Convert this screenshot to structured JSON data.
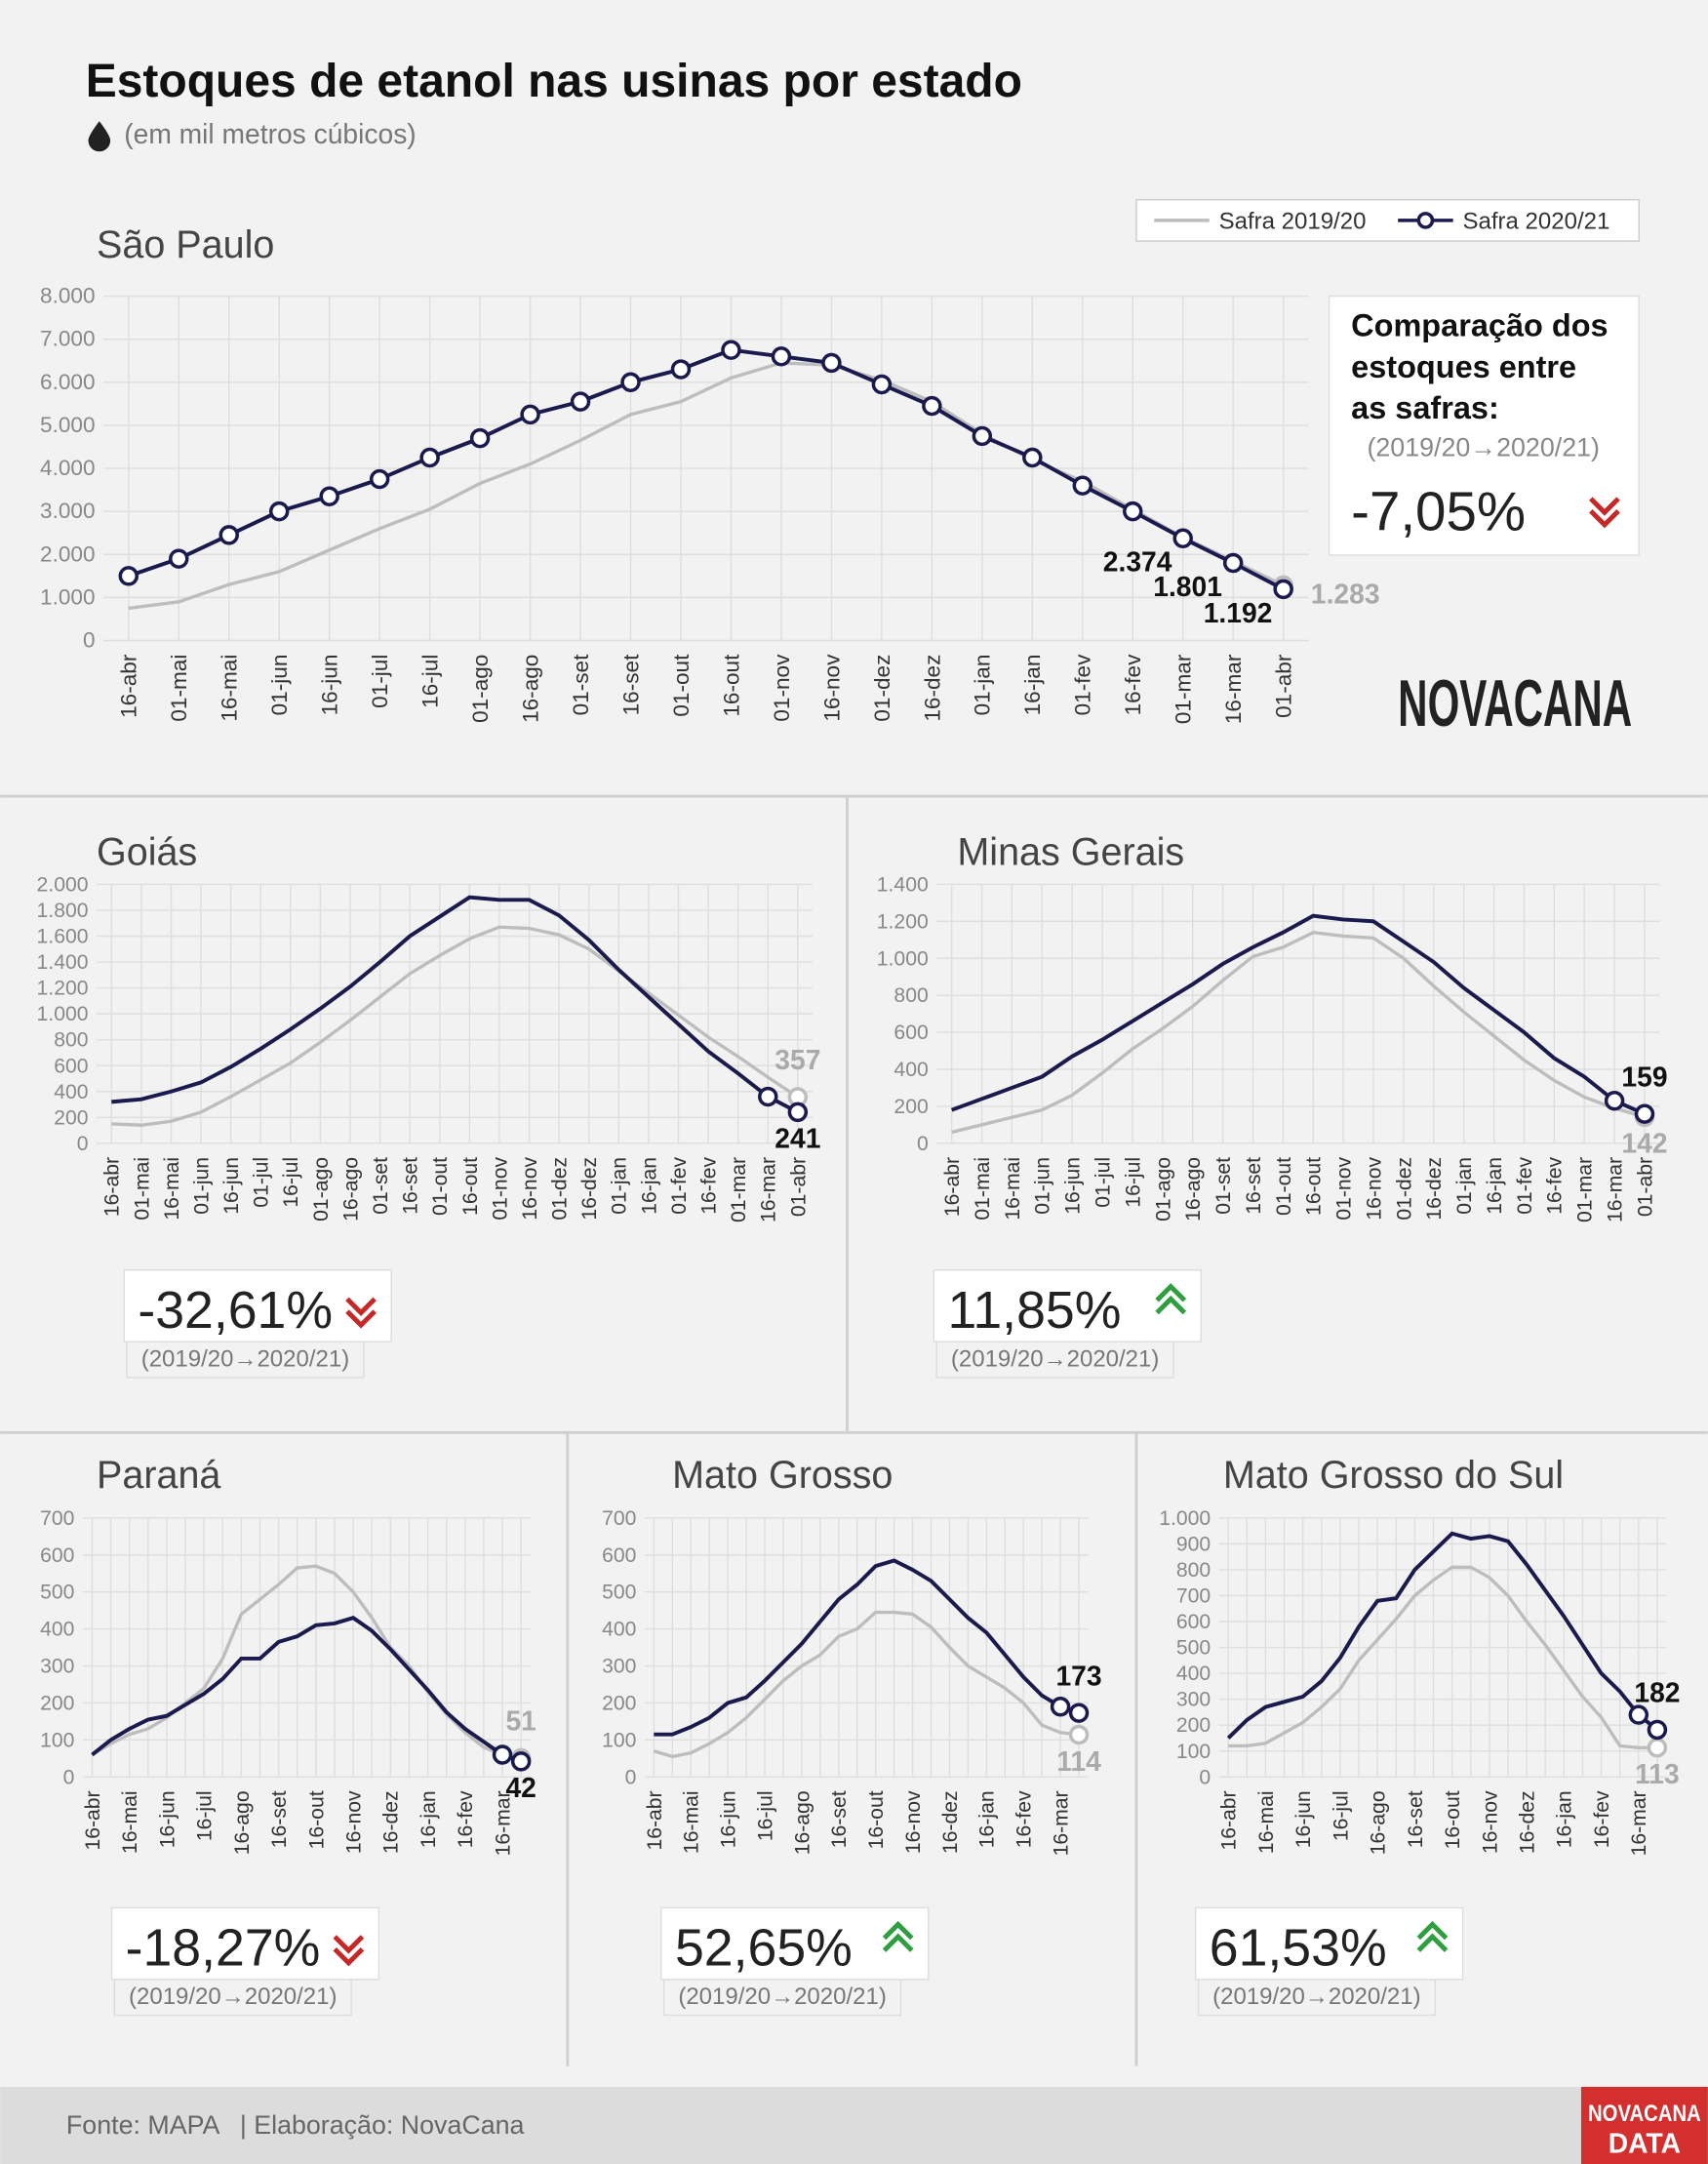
{
  "title": "Estoques de etanol nas usinas por estado",
  "subtitle": "(em mil metros cúbicos)",
  "logo": "NOVACANA",
  "badge": [
    "NOVACANA",
    "DATA"
  ],
  "footer": {
    "source": "Fonte: MAPA",
    "credit": "| Elaboração: NovaCana"
  },
  "chart_data": [
    {
      "type": "line",
      "title": "São Paulo",
      "grid": true,
      "categories": [
        "16-abr",
        "01-mai",
        "16-mai",
        "01-jun",
        "16-jun",
        "01-jul",
        "16-jul",
        "01-ago",
        "16-ago",
        "01-set",
        "16-set",
        "01-out",
        "16-out",
        "01-nov",
        "16-nov",
        "01-dez",
        "16-dez",
        "01-jan",
        "16-jan",
        "01-fev",
        "16-fev",
        "01-mar",
        "16-mar",
        "01-abr"
      ],
      "ylim": [
        0,
        8000
      ],
      "yticks": [
        0,
        {
          "value": 1000,
          "label": "1.000"
        },
        {
          "value": 2000,
          "label": "2.000"
        },
        {
          "value": 3000,
          "label": "3.000"
        },
        {
          "value": 4000,
          "label": "4.000"
        },
        {
          "value": 5000,
          "label": "5.000"
        },
        {
          "value": 6000,
          "label": "6.000"
        },
        {
          "value": 7000,
          "label": "7.000"
        },
        {
          "value": 8000,
          "label": "8.000"
        }
      ],
      "legend": "top-right",
      "series": [
        {
          "name": "Safra 2019/20",
          "color": "#bdbdbd",
          "markers": "last",
          "label_position": "right",
          "values": [
            750,
            900,
            1300,
            1600,
            2100,
            2600,
            3050,
            3650,
            4100,
            4650,
            5250,
            5550,
            6100,
            6450,
            6400,
            6050,
            5550,
            4800,
            4200,
            3700,
            3050,
            2400,
            1850,
            1283
          ],
          "value_labels": [
            null,
            null,
            null,
            null,
            null,
            null,
            null,
            null,
            null,
            null,
            null,
            null,
            null,
            null,
            null,
            null,
            null,
            null,
            null,
            null,
            null,
            null,
            null,
            "1.283"
          ]
        },
        {
          "name": "Safra 2020/21",
          "color": "#1a1a4e",
          "markers": "all",
          "label_position": "left",
          "values": [
            1500,
            1900,
            2450,
            3000,
            3350,
            3750,
            4250,
            4700,
            5250,
            5550,
            6000,
            6300,
            6750,
            6600,
            6450,
            5950,
            5450,
            4750,
            4250,
            3600,
            3000,
            2374,
            1801,
            1192
          ],
          "value_labels": [
            null,
            null,
            null,
            null,
            null,
            null,
            null,
            null,
            null,
            null,
            null,
            null,
            null,
            null,
            null,
            null,
            null,
            null,
            null,
            null,
            null,
            "2.374",
            "1.801",
            "1.192"
          ]
        }
      ],
      "comparison": {
        "title": [
          "Comparação dos",
          "estoques entre",
          "as safras:"
        ],
        "period": "(2019/20→2020/21)",
        "change": "-7,05%",
        "trend": "down"
      }
    },
    {
      "type": "line",
      "title": "Goiás",
      "grid": true,
      "categories": [
        "16-abr",
        "01-mai",
        "16-mai",
        "01-jun",
        "16-jun",
        "01-jul",
        "16-jul",
        "01-ago",
        "16-ago",
        "01-set",
        "16-set",
        "01-out",
        "16-out",
        "01-nov",
        "16-nov",
        "01-dez",
        "16-dez",
        "01-jan",
        "16-jan",
        "01-fev",
        "16-fev",
        "01-mar",
        "16-mar",
        "01-abr"
      ],
      "ylim": [
        0,
        2000
      ],
      "yticks": [
        0,
        200,
        400,
        600,
        800,
        {
          "value": 1000,
          "label": "1.000"
        },
        {
          "value": 1200,
          "label": "1.200"
        },
        {
          "value": 1400,
          "label": "1.400"
        },
        {
          "value": 1600,
          "label": "1.600"
        },
        {
          "value": 1800,
          "label": "1.800"
        },
        {
          "value": 2000,
          "label": "2.000"
        }
      ],
      "series": [
        {
          "color": "#bdbdbd",
          "markers": "last",
          "label_position": "above",
          "values": [
            150,
            140,
            170,
            240,
            360,
            490,
            620,
            780,
            950,
            1130,
            1310,
            1450,
            1580,
            1670,
            1660,
            1610,
            1500,
            1330,
            1160,
            990,
            820,
            670,
            510,
            357
          ],
          "value_labels": [
            null,
            null,
            null,
            null,
            null,
            null,
            null,
            null,
            null,
            null,
            null,
            null,
            null,
            null,
            null,
            null,
            null,
            null,
            null,
            null,
            null,
            null,
            null,
            "357"
          ]
        },
        {
          "color": "#1a1a4e",
          "markers": "last2",
          "label_position": "below",
          "values": [
            320,
            340,
            400,
            470,
            590,
            730,
            880,
            1040,
            1210,
            1400,
            1600,
            1750,
            1900,
            1880,
            1880,
            1760,
            1570,
            1340,
            1130,
            920,
            710,
            540,
            360,
            241
          ],
          "value_labels": [
            null,
            null,
            null,
            null,
            null,
            null,
            null,
            null,
            null,
            null,
            null,
            null,
            null,
            null,
            null,
            null,
            null,
            null,
            null,
            null,
            null,
            null,
            null,
            "241"
          ]
        }
      ],
      "comparison": {
        "period": "(2019/20→2020/21)",
        "change": "-32,61%",
        "trend": "down"
      }
    },
    {
      "type": "line",
      "title": "Minas Gerais",
      "grid": true,
      "categories": [
        "16-abr",
        "01-mai",
        "16-mai",
        "01-jun",
        "16-jun",
        "01-jul",
        "16-jul",
        "01-ago",
        "16-ago",
        "01-set",
        "16-set",
        "01-out",
        "16-out",
        "01-nov",
        "16-nov",
        "01-dez",
        "16-dez",
        "01-jan",
        "16-jan",
        "01-fev",
        "16-fev",
        "01-mar",
        "16-mar",
        "01-abr"
      ],
      "ylim": [
        0,
        1400
      ],
      "yticks": [
        0,
        200,
        400,
        600,
        800,
        {
          "value": 1000,
          "label": "1.000"
        },
        {
          "value": 1200,
          "label": "1.200"
        },
        {
          "value": 1400,
          "label": "1.400"
        }
      ],
      "series": [
        {
          "color": "#bdbdbd",
          "markers": "last",
          "label_position": "below",
          "values": [
            60,
            100,
            140,
            180,
            260,
            380,
            510,
            620,
            740,
            880,
            1010,
            1060,
            1140,
            1120,
            1110,
            1000,
            850,
            710,
            580,
            450,
            340,
            250,
            190,
            142
          ],
          "value_labels": [
            null,
            null,
            null,
            null,
            null,
            null,
            null,
            null,
            null,
            null,
            null,
            null,
            null,
            null,
            null,
            null,
            null,
            null,
            null,
            null,
            null,
            null,
            null,
            "142"
          ]
        },
        {
          "color": "#1a1a4e",
          "markers": "last2",
          "label_position": "above",
          "values": [
            180,
            240,
            300,
            360,
            470,
            560,
            660,
            760,
            860,
            970,
            1060,
            1140,
            1230,
            1210,
            1200,
            1090,
            980,
            840,
            720,
            600,
            460,
            360,
            230,
            159
          ],
          "value_labels": [
            null,
            null,
            null,
            null,
            null,
            null,
            null,
            null,
            null,
            null,
            null,
            null,
            null,
            null,
            null,
            null,
            null,
            null,
            null,
            null,
            null,
            null,
            null,
            "159"
          ]
        }
      ],
      "comparison": {
        "period": "(2019/20→2020/21)",
        "change": "11,85%",
        "trend": "up"
      }
    },
    {
      "type": "line",
      "title": "Paraná",
      "grid": true,
      "categories": [
        "16-abr",
        null,
        "16-mai",
        null,
        "16-jun",
        null,
        "16-jul",
        null,
        "16-ago",
        null,
        "16-set",
        null,
        "16-out",
        null,
        "16-nov",
        null,
        "16-dez",
        null,
        "16-jan",
        null,
        "16-fev",
        null,
        "16-mar",
        null
      ],
      "ylim": [
        0,
        700
      ],
      "yticks": [
        0,
        100,
        200,
        300,
        400,
        500,
        600,
        700
      ],
      "series": [
        {
          "color": "#bdbdbd",
          "markers": "last",
          "label_position": "above",
          "values": [
            60,
            90,
            115,
            130,
            160,
            200,
            240,
            320,
            440,
            480,
            520,
            565,
            570,
            550,
            500,
            430,
            350,
            300,
            230,
            170,
            120,
            80,
            60,
            51
          ],
          "value_labels": [
            null,
            null,
            null,
            null,
            null,
            null,
            null,
            null,
            null,
            null,
            null,
            null,
            null,
            null,
            null,
            null,
            null,
            null,
            null,
            null,
            null,
            null,
            null,
            "51"
          ]
        },
        {
          "color": "#1a1a4e",
          "markers": "last2",
          "label_position": "below",
          "values": [
            60,
            100,
            130,
            155,
            165,
            195,
            225,
            265,
            320,
            320,
            365,
            380,
            410,
            415,
            430,
            395,
            345,
            290,
            235,
            175,
            130,
            95,
            60,
            42
          ],
          "value_labels": [
            null,
            null,
            null,
            null,
            null,
            null,
            null,
            null,
            null,
            null,
            null,
            null,
            null,
            null,
            null,
            null,
            null,
            null,
            null,
            null,
            null,
            null,
            null,
            "42"
          ]
        }
      ],
      "comparison": {
        "period": "(2019/20→2020/21)",
        "change": "-18,27%",
        "trend": "down"
      }
    },
    {
      "type": "line",
      "title": "Mato Grosso",
      "grid": true,
      "categories": [
        "16-abr",
        null,
        "16-mai",
        null,
        "16-jun",
        null,
        "16-jul",
        null,
        "16-ago",
        null,
        "16-set",
        null,
        "16-out",
        null,
        "16-nov",
        null,
        "16-dez",
        null,
        "16-jan",
        null,
        "16-fev",
        null,
        "16-mar",
        null
      ],
      "ylim": [
        0,
        700
      ],
      "yticks": [
        0,
        100,
        200,
        300,
        400,
        500,
        600,
        700
      ],
      "series": [
        {
          "color": "#bdbdbd",
          "markers": "last",
          "label_position": "below",
          "values": [
            70,
            55,
            65,
            90,
            120,
            160,
            210,
            260,
            300,
            330,
            380,
            400,
            445,
            445,
            440,
            405,
            350,
            300,
            270,
            240,
            200,
            140,
            120,
            114
          ],
          "value_labels": [
            null,
            null,
            null,
            null,
            null,
            null,
            null,
            null,
            null,
            null,
            null,
            null,
            null,
            null,
            null,
            null,
            null,
            null,
            null,
            null,
            null,
            null,
            null,
            "114"
          ]
        },
        {
          "color": "#1a1a4e",
          "markers": "last2",
          "label_position": "above",
          "values": [
            115,
            115,
            135,
            160,
            200,
            215,
            260,
            310,
            360,
            420,
            480,
            520,
            570,
            585,
            560,
            530,
            480,
            430,
            390,
            330,
            270,
            220,
            190,
            173
          ],
          "value_labels": [
            null,
            null,
            null,
            null,
            null,
            null,
            null,
            null,
            null,
            null,
            null,
            null,
            null,
            null,
            null,
            null,
            null,
            null,
            null,
            null,
            null,
            null,
            null,
            "173"
          ]
        }
      ],
      "comparison": {
        "period": "(2019/20→2020/21)",
        "change": "52,65%",
        "trend": "up"
      }
    },
    {
      "type": "line",
      "title": "Mato Grosso do Sul",
      "grid": true,
      "categories": [
        "16-abr",
        null,
        "16-mai",
        null,
        "16-jun",
        null,
        "16-jul",
        null,
        "16-ago",
        null,
        "16-set",
        null,
        "16-out",
        null,
        "16-nov",
        null,
        "16-dez",
        null,
        "16-jan",
        null,
        "16-fev",
        null,
        "16-mar",
        null
      ],
      "ylim": [
        0,
        1000
      ],
      "yticks": [
        0,
        100,
        200,
        300,
        400,
        500,
        600,
        700,
        800,
        900,
        {
          "value": 1000,
          "label": "1.000"
        }
      ],
      "series": [
        {
          "color": "#bdbdbd",
          "markers": "last",
          "label_position": "below",
          "values": [
            120,
            120,
            130,
            170,
            210,
            270,
            340,
            450,
            530,
            610,
            700,
            760,
            810,
            810,
            770,
            700,
            600,
            510,
            410,
            310,
            230,
            120,
            113,
            113
          ],
          "value_labels": [
            null,
            null,
            null,
            null,
            null,
            null,
            null,
            null,
            null,
            null,
            null,
            null,
            null,
            null,
            null,
            null,
            null,
            null,
            null,
            null,
            null,
            null,
            null,
            "113"
          ]
        },
        {
          "color": "#1a1a4e",
          "markers": "last2",
          "label_position": "above",
          "values": [
            150,
            220,
            270,
            290,
            310,
            370,
            460,
            580,
            680,
            690,
            800,
            870,
            940,
            920,
            930,
            910,
            820,
            720,
            620,
            510,
            400,
            330,
            240,
            182
          ],
          "value_labels": [
            null,
            null,
            null,
            null,
            null,
            null,
            null,
            null,
            null,
            null,
            null,
            null,
            null,
            null,
            null,
            null,
            null,
            null,
            null,
            null,
            null,
            null,
            null,
            "182"
          ]
        }
      ],
      "comparison": {
        "period": "(2019/20→2020/21)",
        "change": "61,53%",
        "trend": "up"
      }
    }
  ]
}
